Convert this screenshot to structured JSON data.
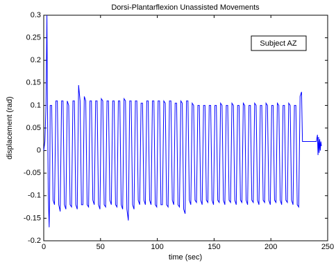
{
  "chart_data": {
    "type": "line",
    "title": "Dorsi-Plantarflexion Unassisted Movements",
    "x_label": "time (sec)",
    "y_label": "displacement (rad)",
    "annotation": "Subject AZ",
    "color": "#0000ff",
    "xlim": [
      0,
      250
    ],
    "xticks": [
      0,
      50,
      100,
      150,
      200,
      250
    ],
    "ylim": [
      -0.2,
      0.3
    ],
    "yticks": [
      -0.2,
      -0.15,
      -0.1,
      -0.05,
      0,
      0.05,
      0.1,
      0.15,
      0.2,
      0.25,
      0.3
    ],
    "x": [
      0,
      1,
      2,
      2.8,
      3.3,
      4,
      4.8,
      5.2,
      5.7,
      7,
      8.2,
      9.5,
      10.7,
      12,
      13.2,
      14.5,
      15.7,
      17,
      18.2,
      19.5,
      20.7,
      22,
      23.2,
      24.5,
      25.7,
      27,
      28.2,
      29.5,
      30.7,
      32,
      33.2,
      34.5,
      35.7,
      37,
      38.2,
      39.5,
      40.7,
      42,
      43.2,
      44.5,
      45.7,
      47,
      48.2,
      49.5,
      50.7,
      52,
      53.2,
      54.5,
      55.7,
      57,
      58.2,
      59.5,
      60.7,
      62,
      63.2,
      64.5,
      65.7,
      67,
      68.2,
      69.5,
      70.7,
      72,
      73.2,
      74.5,
      75.7,
      77,
      78.2,
      79.5,
      80.7,
      82,
      83.2,
      84.5,
      85.7,
      87,
      88.2,
      89.5,
      90.7,
      92,
      93.2,
      94.5,
      95.7,
      97,
      98.2,
      99.5,
      100.7,
      102,
      103.2,
      104.5,
      105.7,
      107,
      108.2,
      109.5,
      110.7,
      112,
      113.2,
      114.5,
      115.7,
      117,
      118.2,
      119.5,
      120.7,
      122,
      123.2,
      124.5,
      125.7,
      127,
      128.2,
      129.5,
      130.7,
      132,
      133.2,
      134.5,
      135.7,
      137,
      138.2,
      139.5,
      140.7,
      142,
      143.2,
      144.5,
      145.7,
      147,
      148.2,
      149.5,
      150.7,
      152,
      153.2,
      154.5,
      155.7,
      157,
      158.2,
      159.5,
      160.7,
      162,
      163.2,
      164.5,
      165.7,
      167,
      168.2,
      169.5,
      170.7,
      172,
      173.2,
      174.5,
      175.7,
      177,
      178.2,
      179.5,
      180.7,
      182,
      183.2,
      184.5,
      185.7,
      187,
      188.2,
      189.5,
      190.7,
      192,
      193.2,
      194.5,
      195.7,
      197,
      198.2,
      199.5,
      200.7,
      202,
      203.2,
      204.5,
      205.7,
      207,
      208.2,
      209.5,
      210.7,
      212,
      213.2,
      214.5,
      215.7,
      217,
      218.2,
      219.5,
      220.7,
      222,
      223.2,
      224.5,
      225.7,
      227,
      227.8,
      230,
      240,
      241,
      241.5,
      242,
      242.5,
      243,
      243.5,
      244,
      244.5
    ],
    "values": [
      0,
      0.02,
      0.1,
      0.3,
      0.1,
      -0.1,
      -0.17,
      -0.1,
      0.1,
      0.1,
      -0.11,
      -0.12,
      0.11,
      0.11,
      -0.12,
      -0.135,
      0.11,
      0.11,
      -0.12,
      -0.13,
      0.11,
      0.1,
      -0.12,
      -0.125,
      0.11,
      0.11,
      -0.12,
      -0.13,
      0.145,
      0.11,
      -0.12,
      -0.12,
      0.12,
      0.11,
      -0.12,
      -0.125,
      0.11,
      0.11,
      -0.11,
      -0.12,
      0.11,
      0.11,
      -0.12,
      -0.13,
      0.115,
      0.11,
      -0.12,
      -0.125,
      0.11,
      0.11,
      -0.11,
      -0.12,
      0.11,
      0.11,
      -0.12,
      -0.125,
      0.11,
      0.11,
      -0.12,
      -0.13,
      0.115,
      0.11,
      -0.13,
      -0.155,
      0.11,
      0.11,
      -0.12,
      -0.13,
      0.11,
      0.11,
      -0.11,
      -0.12,
      0.105,
      0.105,
      -0.11,
      -0.12,
      0.11,
      0.11,
      -0.11,
      -0.12,
      0.11,
      0.11,
      -0.12,
      -0.125,
      0.11,
      0.11,
      -0.12,
      -0.12,
      0.11,
      0.105,
      -0.12,
      -0.125,
      0.11,
      0.11,
      -0.11,
      -0.12,
      0.105,
      0.105,
      -0.12,
      -0.125,
      0.11,
      0.105,
      -0.13,
      -0.14,
      0.11,
      0.11,
      -0.11,
      -0.12,
      0.105,
      0.1,
      -0.11,
      -0.115,
      0.1,
      0.1,
      -0.11,
      -0.12,
      0.1,
      0.1,
      -0.11,
      -0.115,
      0.1,
      0.1,
      -0.11,
      -0.12,
      0.1,
      0.1,
      -0.11,
      -0.115,
      0.105,
      0.1,
      -0.11,
      -0.12,
      0.1,
      0.1,
      -0.11,
      -0.115,
      0.105,
      0.1,
      -0.11,
      -0.12,
      0.1,
      0.1,
      -0.11,
      -0.115,
      0.105,
      0.1,
      -0.11,
      -0.12,
      0.1,
      0.1,
      -0.11,
      -0.115,
      0.105,
      0.1,
      -0.11,
      -0.12,
      0.1,
      0.1,
      -0.11,
      -0.115,
      0.105,
      0.1,
      -0.11,
      -0.12,
      0.1,
      0.1,
      -0.11,
      -0.115,
      0.105,
      0.1,
      -0.11,
      -0.12,
      0.1,
      0.1,
      -0.11,
      -0.115,
      0.105,
      0.1,
      -0.11,
      -0.12,
      0.1,
      0.1,
      -0.12,
      -0.125,
      0.12,
      0.13,
      0.02,
      0.02,
      0.02,
      0.035,
      -0.01,
      0.03,
      -0.005,
      0.025,
      0,
      0.02,
      0.01
    ]
  }
}
